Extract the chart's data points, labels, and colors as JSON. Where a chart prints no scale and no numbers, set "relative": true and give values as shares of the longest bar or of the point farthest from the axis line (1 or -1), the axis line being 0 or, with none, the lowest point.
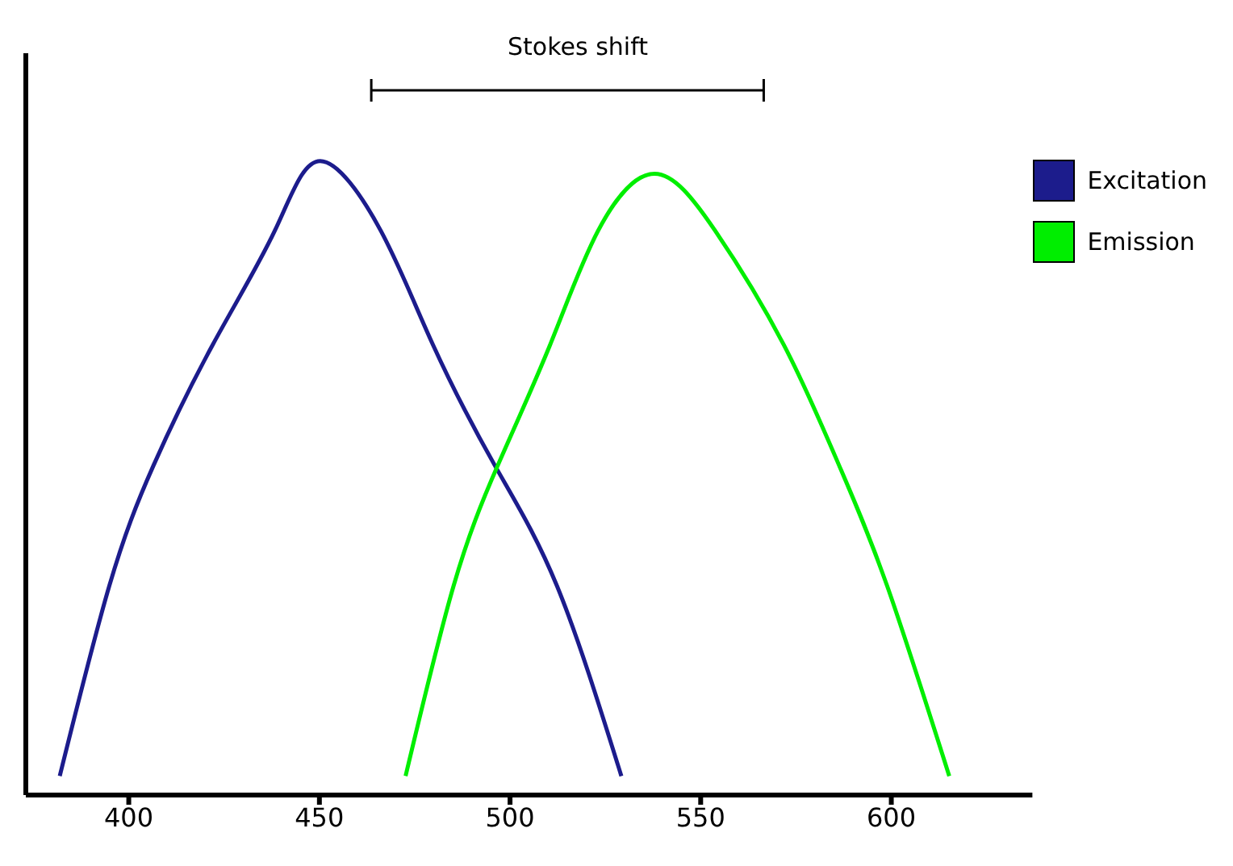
{
  "chart_data": {
    "type": "line",
    "relative": true,
    "annotations": [
      "Stokes shift"
    ],
    "xlim": [
      373,
      637
    ],
    "xticks": [
      400,
      450,
      500,
      550,
      600
    ],
    "legend": "top right",
    "marker": "none",
    "line_style": "solid",
    "grid": false,
    "series": [
      {
        "name": "Excitation",
        "color": "#1c1c8c",
        "x": [
          381.9,
          394.9,
          406.5,
          422.0,
          438.3,
          450.2,
          466.1,
          479.8,
          496.0,
          512.3,
          529.2
        ],
        "values": [
          0.03,
          0.33,
          0.52,
          0.71,
          0.89,
          1,
          0.89,
          0.71,
          0.52,
          0.33,
          0.03
        ]
      },
      {
        "name": "Emission",
        "color": "#00ee00",
        "x": [
          472.6,
          485.2,
          496.8,
          510.5,
          523.1,
          537.9,
          553.8,
          571.8,
          586.3,
          598.9,
          615.2
        ],
        "values": [
          0.03,
          0.33,
          0.52,
          0.71,
          0.89,
          0.98,
          0.89,
          0.71,
          0.52,
          0.33,
          0.03
        ]
      }
    ]
  }
}
